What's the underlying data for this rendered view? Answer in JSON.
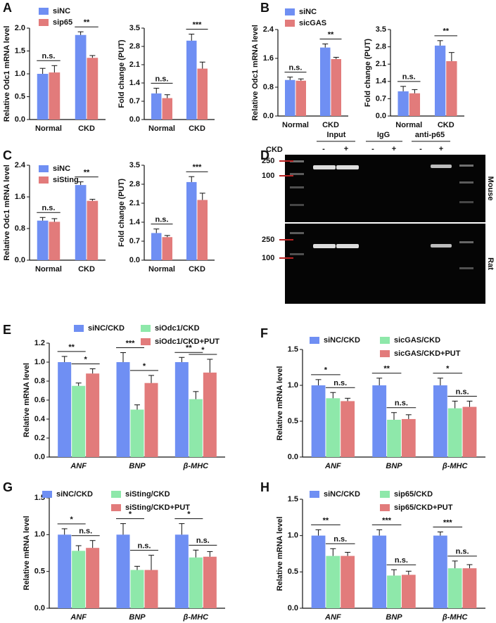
{
  "panel_labels": [
    "A",
    "B",
    "C",
    "D",
    "E",
    "F",
    "G",
    "H"
  ],
  "gel": {
    "row_label": "CKD",
    "column_groups": [
      "Input",
      "IgG",
      "anti-p65"
    ],
    "lanes": [
      "-",
      "+",
      "-",
      "+",
      "-",
      "+"
    ],
    "blots": [
      {
        "label": "Mouse",
        "markers": [
          "250",
          "100"
        ]
      },
      {
        "label": "Rat",
        "markers": [
          "250",
          "100"
        ]
      }
    ]
  },
  "chart_data": [
    {
      "type": "bar",
      "ylabel": "Relative Odc1 mRNA level",
      "categories": [
        "Normal",
        "CKD"
      ],
      "legend": "top-left",
      "series": [
        {
          "name": "siNC",
          "color": "#6f8ff3",
          "values": [
            1.0,
            1.85
          ],
          "errors": [
            0.12,
            0.07
          ]
        },
        {
          "name": "sip65",
          "color": "#e27b7b",
          "values": [
            1.03,
            1.35
          ],
          "errors": [
            0.15,
            0.05
          ]
        }
      ],
      "ylim": [
        0,
        2
      ],
      "yticks": [
        {
          "value": 0,
          "label": "0.0"
        },
        {
          "value": 0.5,
          "label": "0.5"
        },
        {
          "value": 1,
          "label": "1.0"
        },
        {
          "value": 1.5,
          "label": "1.5"
        },
        {
          "value": 2,
          "label": "2.0"
        }
      ],
      "significance": [
        [
          "n.s."
        ],
        [
          "**"
        ]
      ]
    },
    {
      "type": "bar",
      "ylabel": "Fold change (PUT)",
      "categories": [
        "Normal",
        "CKD"
      ],
      "series": [
        {
          "color": "#6f8ff3",
          "values": [
            1.0,
            3.02
          ],
          "errors": [
            0.2,
            0.25
          ]
        },
        {
          "color": "#e27b7b",
          "values": [
            0.82,
            1.95
          ],
          "errors": [
            0.13,
            0.25
          ]
        }
      ],
      "ylim": [
        0,
        3.5
      ],
      "yticks": [
        {
          "value": 0,
          "label": "0.0"
        },
        {
          "value": 0.7,
          "label": "0.7"
        },
        {
          "value": 1.4,
          "label": "1.4"
        },
        {
          "value": 2.1,
          "label": "2.1"
        },
        {
          "value": 2.8,
          "label": "2.8"
        },
        {
          "value": 3.5,
          "label": "3.5"
        }
      ],
      "significance": [
        [
          "n.s."
        ],
        [
          "***"
        ]
      ]
    },
    {
      "type": "bar",
      "ylabel": "Relative Odc1 mRNA level",
      "categories": [
        "Normal",
        "CKD"
      ],
      "legend": "top-left",
      "series": [
        {
          "name": "siNC",
          "color": "#6f8ff3",
          "values": [
            1.0,
            1.9
          ],
          "errors": [
            0.08,
            0.1
          ]
        },
        {
          "name": "sicGAS",
          "color": "#e27b7b",
          "values": [
            0.98,
            1.58
          ],
          "errors": [
            0.05,
            0.05
          ]
        }
      ],
      "ylim": [
        0,
        2.4
      ],
      "yticks": [
        {
          "value": 0,
          "label": "0.0"
        },
        {
          "value": 0.8,
          "label": "0.8"
        },
        {
          "value": 1.6,
          "label": "1.6"
        },
        {
          "value": 2.4,
          "label": "2.4"
        }
      ],
      "significance": [
        [
          "n.s."
        ],
        [
          "**"
        ]
      ]
    },
    {
      "type": "bar",
      "ylabel": "Fold change (PUT)",
      "categories": [
        "Normal",
        "CKD"
      ],
      "series": [
        {
          "color": "#6f8ff3",
          "values": [
            1.0,
            2.85
          ],
          "errors": [
            0.2,
            0.2
          ]
        },
        {
          "color": "#e27b7b",
          "values": [
            0.92,
            2.22
          ],
          "errors": [
            0.15,
            0.35
          ]
        }
      ],
      "ylim": [
        0,
        3.5
      ],
      "yticks": [
        {
          "value": 0,
          "label": "0.0"
        },
        {
          "value": 0.7,
          "label": "0.7"
        },
        {
          "value": 1.4,
          "label": "1.4"
        },
        {
          "value": 2.1,
          "label": "2.1"
        },
        {
          "value": 2.8,
          "label": "2.8"
        },
        {
          "value": 3.5,
          "label": "3.5"
        }
      ],
      "significance": [
        [
          "n.s."
        ],
        [
          "**"
        ]
      ]
    },
    {
      "type": "bar",
      "ylabel": "Relative Odc1 mRNA level",
      "categories": [
        "Normal",
        "CKD"
      ],
      "legend": "top-left",
      "series": [
        {
          "name": "siNC",
          "color": "#6f8ff3",
          "values": [
            1.0,
            1.9
          ],
          "errors": [
            0.08,
            0.08
          ]
        },
        {
          "name": "siSting",
          "color": "#e27b7b",
          "values": [
            0.97,
            1.5
          ],
          "errors": [
            0.08,
            0.04
          ]
        }
      ],
      "ylim": [
        0,
        2.4
      ],
      "yticks": [
        {
          "value": 0,
          "label": "0.0"
        },
        {
          "value": 0.8,
          "label": "0.8"
        },
        {
          "value": 1.6,
          "label": "1.6"
        },
        {
          "value": 2.4,
          "label": "2.4"
        }
      ],
      "significance": [
        [
          "n.s."
        ],
        [
          "**"
        ]
      ]
    },
    {
      "type": "bar",
      "ylabel": "Fold change (PUT)",
      "categories": [
        "Normal",
        "CKD"
      ],
      "series": [
        {
          "color": "#6f8ff3",
          "values": [
            1.0,
            2.88
          ],
          "errors": [
            0.15,
            0.2
          ]
        },
        {
          "color": "#e27b7b",
          "values": [
            0.85,
            2.22
          ],
          "errors": [
            0.06,
            0.25
          ]
        }
      ],
      "ylim": [
        0,
        3.5
      ],
      "yticks": [
        {
          "value": 0,
          "label": "0.0"
        },
        {
          "value": 0.7,
          "label": "0.7"
        },
        {
          "value": 1.4,
          "label": "1.4"
        },
        {
          "value": 2.1,
          "label": "2.1"
        },
        {
          "value": 2.8,
          "label": "2.8"
        },
        {
          "value": 3.5,
          "label": "3.5"
        }
      ],
      "significance": [
        [
          "n.s."
        ],
        [
          "***"
        ]
      ]
    },
    {
      "type": "bar",
      "ylabel": "Relative mRNA level",
      "categories": [
        "ANF",
        "BNP",
        "β-MHC"
      ],
      "legend": "top",
      "series": [
        {
          "name": "siNC/CKD",
          "color": "#6f8ff3",
          "values": [
            1.0,
            1.0,
            1.0
          ],
          "errors": [
            0.06,
            0.1,
            0.05
          ]
        },
        {
          "name": "siOdc1/CKD",
          "color": "#8ee8aa",
          "values": [
            0.75,
            0.5,
            0.61
          ],
          "errors": [
            0.03,
            0.05,
            0.08
          ]
        },
        {
          "name": "siOdc1/CKD+PUT",
          "color": "#e27b7b",
          "values": [
            0.88,
            0.78,
            0.89
          ],
          "errors": [
            0.05,
            0.08,
            0.14
          ]
        }
      ],
      "ylim": [
        0,
        1.2
      ],
      "yticks": [
        {
          "value": 0,
          "label": "0.0"
        },
        {
          "value": 0.2,
          "label": "0.2"
        },
        {
          "value": 0.4,
          "label": "0.4"
        },
        {
          "value": 0.6,
          "label": "0.6"
        },
        {
          "value": 0.8,
          "label": "0.8"
        },
        {
          "value": 1,
          "label": "1.0"
        },
        {
          "value": 1.2,
          "label": "1.2"
        }
      ],
      "significance": [
        [
          "**",
          "*"
        ],
        [
          "***",
          "*"
        ],
        [
          "**",
          "*"
        ]
      ]
    },
    {
      "type": "bar",
      "ylabel": "Relative mRNA level",
      "categories": [
        "ANF",
        "BNP",
        "β-MHC"
      ],
      "legend": "top",
      "series": [
        {
          "name": "siNC/CKD",
          "color": "#6f8ff3",
          "values": [
            1.0,
            1.0,
            1.0
          ],
          "errors": [
            0.08,
            0.1,
            0.1
          ]
        },
        {
          "name": "sicGAS/CKD",
          "color": "#8ee8aa",
          "values": [
            0.82,
            0.52,
            0.68
          ],
          "errors": [
            0.08,
            0.1,
            0.1
          ]
        },
        {
          "name": "sicGAS/CKD+PUT",
          "color": "#e27b7b",
          "values": [
            0.78,
            0.53,
            0.7
          ],
          "errors": [
            0.04,
            0.06,
            0.08
          ]
        }
      ],
      "ylim": [
        0,
        1.5
      ],
      "yticks": [
        {
          "value": 0,
          "label": "0.0"
        },
        {
          "value": 0.5,
          "label": "0.5"
        },
        {
          "value": 1,
          "label": "1.0"
        },
        {
          "value": 1.5,
          "label": "1.5"
        }
      ],
      "significance": [
        [
          "*",
          "n.s."
        ],
        [
          "**",
          "n.s."
        ],
        [
          "*",
          "n.s."
        ]
      ]
    },
    {
      "type": "bar",
      "ylabel": "Relative mRNA level",
      "categories": [
        "ANF",
        "BNP",
        "β-MHC"
      ],
      "legend": "top",
      "series": [
        {
          "name": "siNC/CKD",
          "color": "#6f8ff3",
          "values": [
            1.0,
            1.0,
            1.0
          ],
          "errors": [
            0.08,
            0.15,
            0.15
          ]
        },
        {
          "name": "siSting/CKD",
          "color": "#8ee8aa",
          "values": [
            0.78,
            0.52,
            0.69
          ],
          "errors": [
            0.07,
            0.05,
            0.1
          ]
        },
        {
          "name": "siSting/CKD+PUT",
          "color": "#e27b7b",
          "values": [
            0.82,
            0.52,
            0.7
          ],
          "errors": [
            0.1,
            0.2,
            0.07
          ]
        }
      ],
      "ylim": [
        0,
        1.5
      ],
      "yticks": [
        {
          "value": 0,
          "label": "0.0"
        },
        {
          "value": 0.5,
          "label": "0.5"
        },
        {
          "value": 1,
          "label": "1.0"
        },
        {
          "value": 1.5,
          "label": "1.5"
        }
      ],
      "significance": [
        [
          "*",
          "n.s."
        ],
        [
          "*",
          "n.s."
        ],
        [
          "*",
          "n.s."
        ]
      ]
    },
    {
      "type": "bar",
      "ylabel": "Relative mRNA level",
      "categories": [
        "ANF",
        "BNP",
        "β-MHC"
      ],
      "legend": "top",
      "series": [
        {
          "name": "siNC/CKD",
          "color": "#6f8ff3",
          "values": [
            1.0,
            1.0,
            1.0
          ],
          "errors": [
            0.08,
            0.08,
            0.05
          ]
        },
        {
          "name": "sip65/CKD",
          "color": "#8ee8aa",
          "values": [
            0.72,
            0.45,
            0.55
          ],
          "errors": [
            0.1,
            0.08,
            0.1
          ]
        },
        {
          "name": "sip65/CKD+PUT",
          "color": "#e27b7b",
          "values": [
            0.72,
            0.46,
            0.55
          ],
          "errors": [
            0.05,
            0.05,
            0.05
          ]
        }
      ],
      "ylim": [
        0,
        1.5
      ],
      "yticks": [
        {
          "value": 0,
          "label": "0.0"
        },
        {
          "value": 0.5,
          "label": "0.5"
        },
        {
          "value": 1,
          "label": "1.0"
        },
        {
          "value": 1.5,
          "label": "1.5"
        }
      ],
      "significance": [
        [
          "**",
          "n.s."
        ],
        [
          "***",
          "n.s."
        ],
        [
          "***",
          "n.s."
        ]
      ]
    }
  ]
}
